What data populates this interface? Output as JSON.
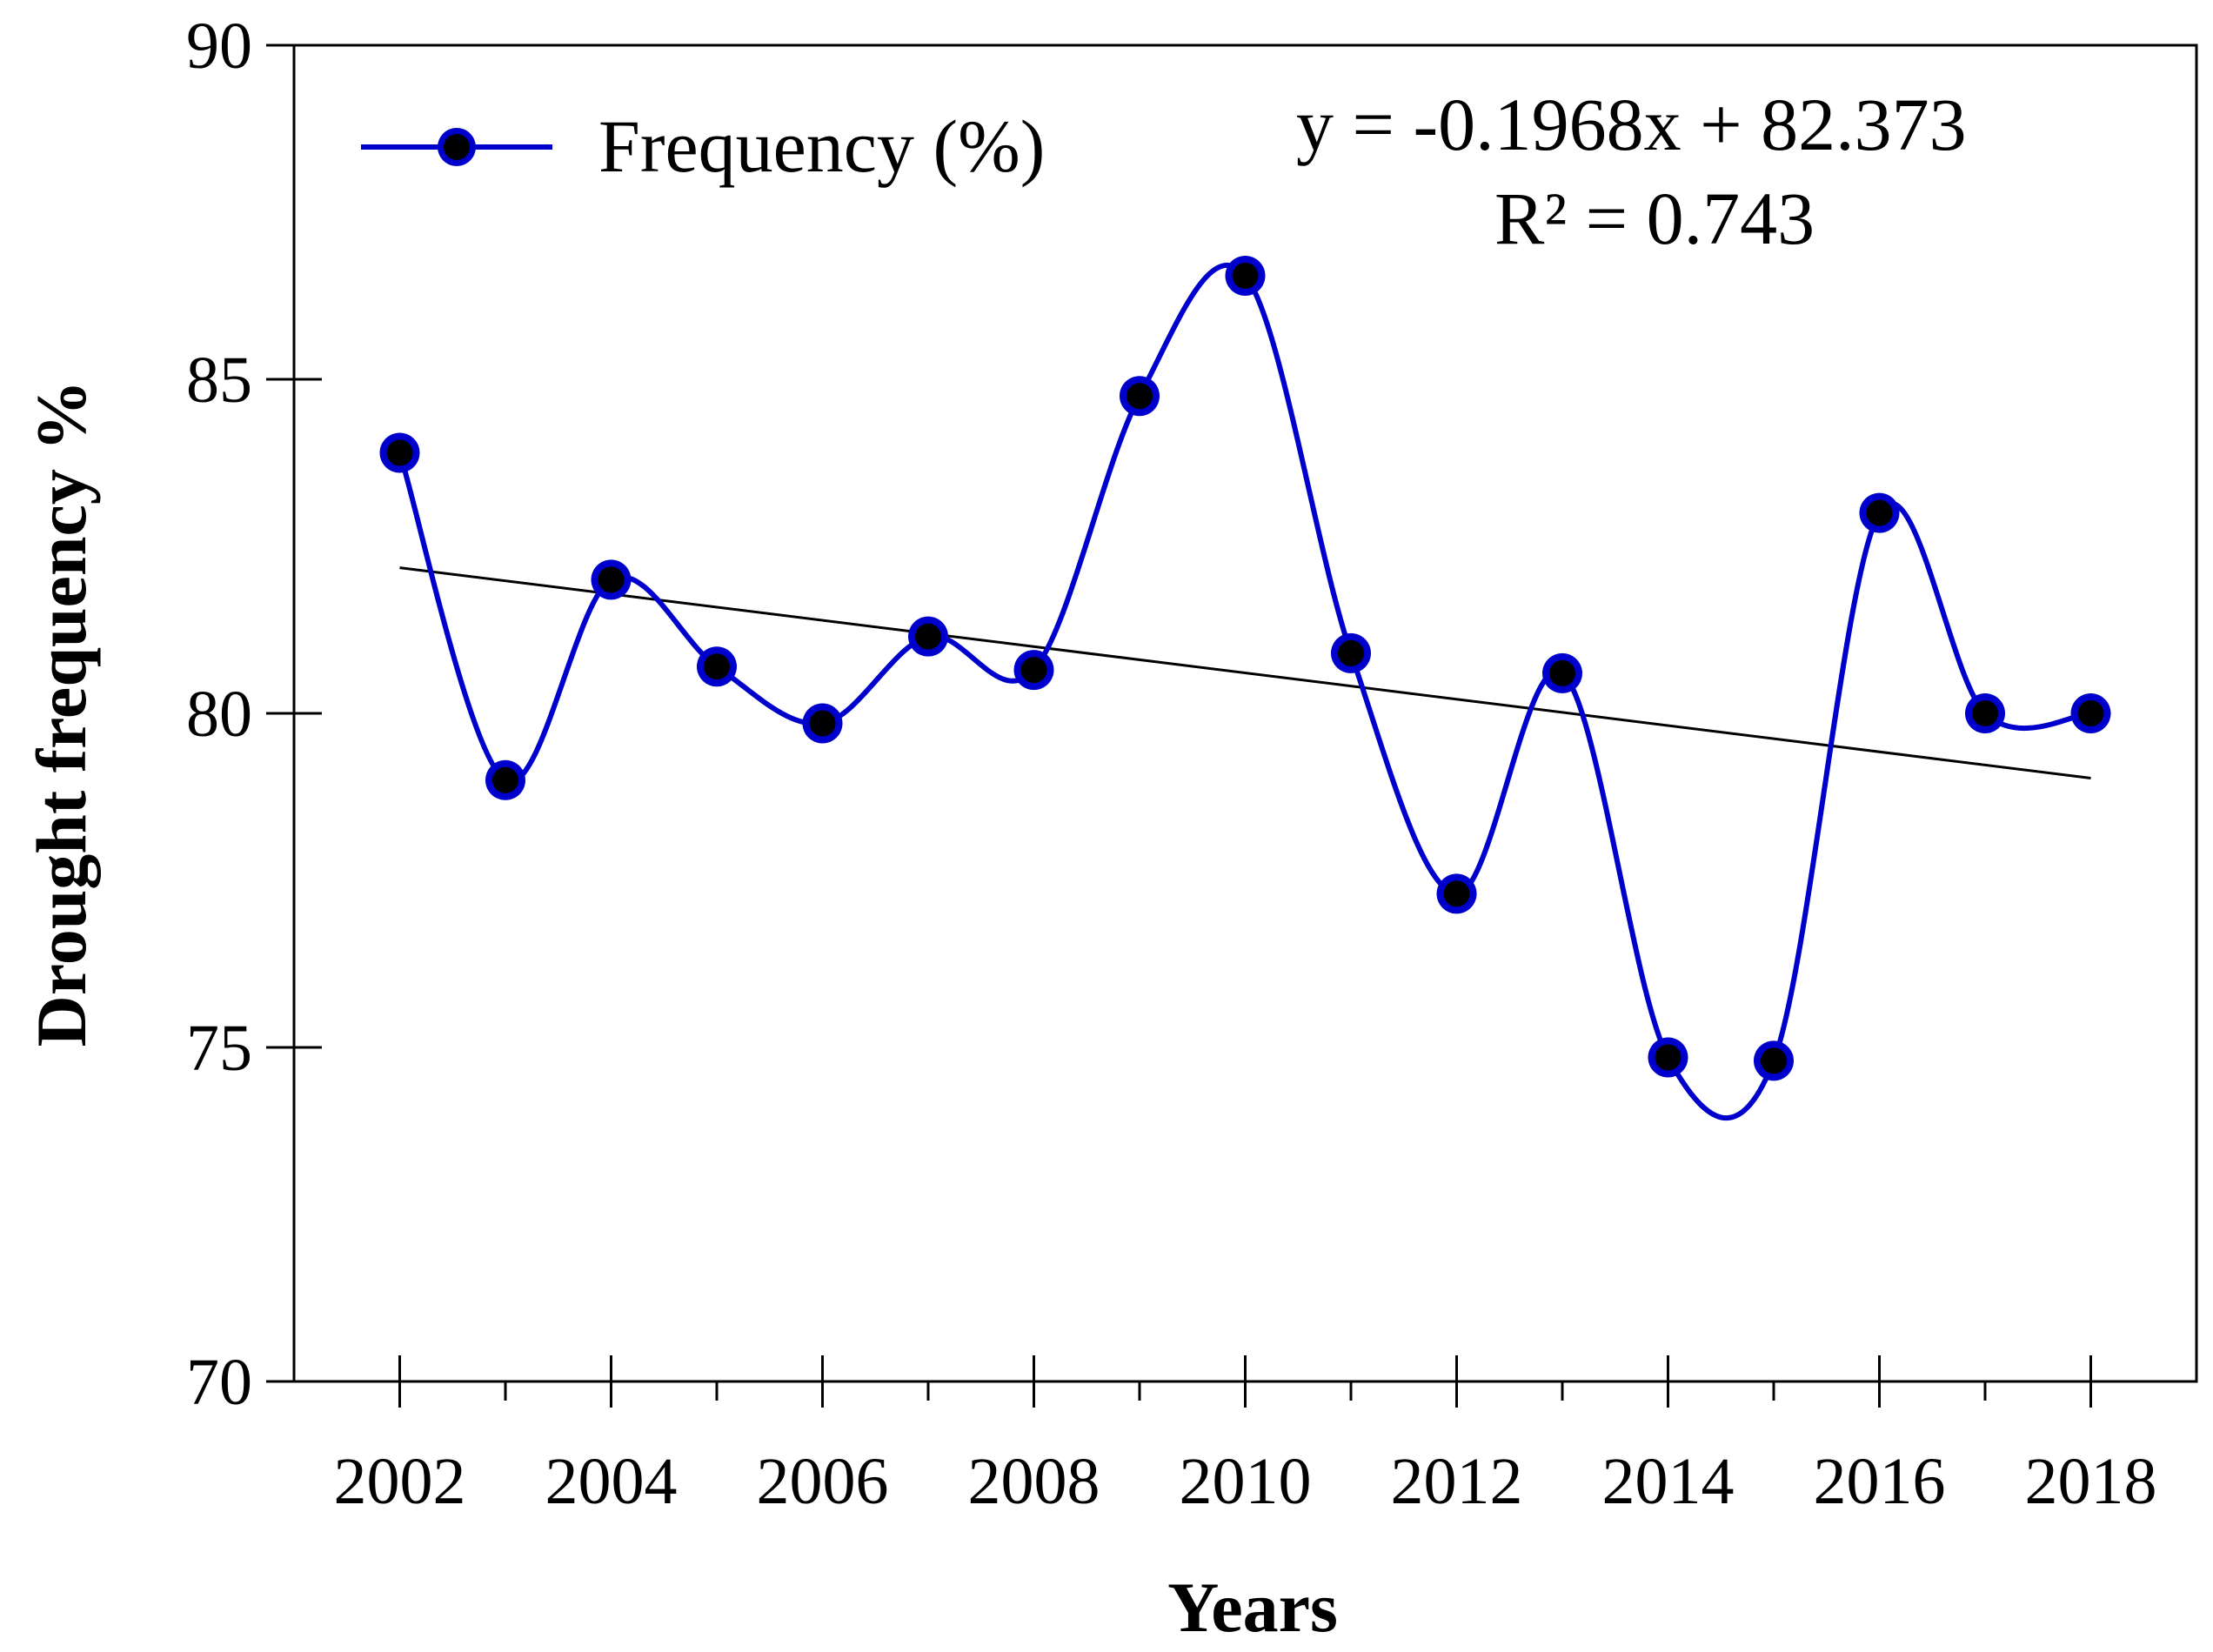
{
  "colors": {
    "series": "#0000cc",
    "marker_fill": "#1a1a9e",
    "marker_center": "#000000",
    "trendline": "#000000",
    "axis": "#000000"
  },
  "legend": {
    "label": "Frequency (%)",
    "position": "top-left"
  },
  "trend": {
    "equation": "y = -0.1968x + 82.373",
    "r2": "R² = 0.743"
  },
  "chart_data": {
    "type": "line",
    "title": "",
    "xlabel": "Years",
    "ylabel": "Drought frequency %",
    "xlim": [
      2001,
      2019
    ],
    "ylim": [
      70,
      90
    ],
    "x_ticks": [
      2002,
      2004,
      2006,
      2008,
      2010,
      2012,
      2014,
      2016,
      2018
    ],
    "x_tick_labels": [
      "2002",
      "2004",
      "2006",
      "2008",
      "2010",
      "2012",
      "2014",
      "2016",
      "2018"
    ],
    "x_minor_ticks": [
      2003,
      2005,
      2007,
      2009,
      2011,
      2013,
      2015,
      2017
    ],
    "y_ticks": [
      70,
      75,
      80,
      85,
      90
    ],
    "y_tick_labels": [
      "70",
      "75",
      "80",
      "85",
      "90"
    ],
    "grid": false,
    "series": [
      {
        "name": "Frequency (%)",
        "smooth": true,
        "x": [
          2002,
          2003,
          2004,
          2005,
          2006,
          2007,
          2008,
          2009,
          2010,
          2011,
          2012,
          2013,
          2014,
          2015,
          2016,
          2017,
          2018
        ],
        "values": [
          83.9,
          79.0,
          82.0,
          80.7,
          79.85,
          81.15,
          80.65,
          84.75,
          86.55,
          80.9,
          77.3,
          80.6,
          74.85,
          74.8,
          83.0,
          80.0,
          80.0
        ]
      }
    ],
    "trendline": {
      "x": [
        2002,
        2018
      ],
      "y": [
        82.18,
        79.03
      ]
    }
  }
}
